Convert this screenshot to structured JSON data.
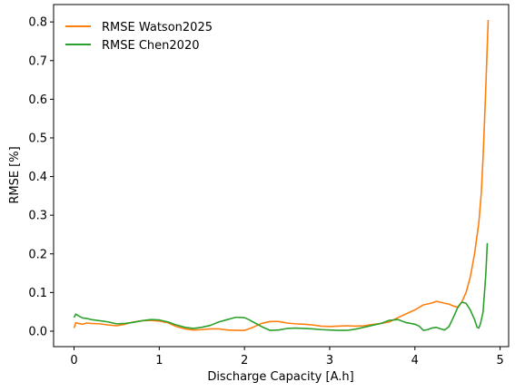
{
  "chart_data": {
    "type": "line",
    "xlabel": "Discharge Capacity [A.h]",
    "ylabel": "RMSE [%]",
    "xlim": [
      -0.24,
      5.1
    ],
    "ylim": [
      -0.04,
      0.845
    ],
    "xticks": [
      0,
      1,
      2,
      3,
      4,
      5
    ],
    "yticks": [
      0.0,
      0.1,
      0.2,
      0.3,
      0.4,
      0.5,
      0.6,
      0.7,
      0.8
    ],
    "xtick_labels": [
      "0",
      "1",
      "2",
      "3",
      "4",
      "5"
    ],
    "ytick_labels": [
      "0.0",
      "0.1",
      "0.2",
      "0.3",
      "0.4",
      "0.5",
      "0.6",
      "0.7",
      "0.8"
    ],
    "grid": false,
    "legend_position": "upper-left",
    "series": [
      {
        "name": "RMSE Watson2025",
        "color": "#ff7f0e",
        "x": [
          0.0,
          0.02,
          0.05,
          0.1,
          0.15,
          0.2,
          0.3,
          0.4,
          0.5,
          0.6,
          0.7,
          0.8,
          0.9,
          1.0,
          1.1,
          1.2,
          1.3,
          1.4,
          1.5,
          1.6,
          1.7,
          1.8,
          1.9,
          2.0,
          2.1,
          2.2,
          2.3,
          2.4,
          2.5,
          2.6,
          2.7,
          2.8,
          2.9,
          3.0,
          3.1,
          3.2,
          3.3,
          3.4,
          3.5,
          3.6,
          3.7,
          3.8,
          3.9,
          4.0,
          4.1,
          4.2,
          4.25,
          4.3,
          4.35,
          4.4,
          4.45,
          4.5,
          4.55,
          4.6,
          4.65,
          4.7,
          4.75,
          4.78,
          4.8,
          4.82,
          4.84,
          4.86
        ],
        "y": [
          0.008,
          0.022,
          0.02,
          0.018,
          0.021,
          0.02,
          0.019,
          0.016,
          0.014,
          0.018,
          0.024,
          0.027,
          0.028,
          0.026,
          0.022,
          0.012,
          0.006,
          0.003,
          0.004,
          0.006,
          0.006,
          0.003,
          0.002,
          0.002,
          0.01,
          0.02,
          0.025,
          0.025,
          0.021,
          0.019,
          0.018,
          0.016,
          0.013,
          0.012,
          0.013,
          0.014,
          0.013,
          0.014,
          0.017,
          0.02,
          0.024,
          0.035,
          0.045,
          0.055,
          0.068,
          0.073,
          0.077,
          0.075,
          0.072,
          0.07,
          0.065,
          0.062,
          0.075,
          0.1,
          0.14,
          0.2,
          0.28,
          0.36,
          0.45,
          0.56,
          0.68,
          0.805
        ]
      },
      {
        "name": "RMSE Chen2020",
        "color": "#2ca02c",
        "x": [
          0.0,
          0.02,
          0.05,
          0.1,
          0.15,
          0.2,
          0.3,
          0.4,
          0.5,
          0.6,
          0.7,
          0.8,
          0.9,
          1.0,
          1.1,
          1.2,
          1.3,
          1.4,
          1.5,
          1.6,
          1.7,
          1.8,
          1.9,
          2.0,
          2.05,
          2.1,
          2.2,
          2.3,
          2.4,
          2.5,
          2.6,
          2.7,
          2.8,
          2.9,
          3.0,
          3.1,
          3.2,
          3.3,
          3.4,
          3.5,
          3.6,
          3.7,
          3.8,
          3.9,
          4.0,
          4.05,
          4.1,
          4.15,
          4.2,
          4.25,
          4.3,
          4.35,
          4.4,
          4.45,
          4.5,
          4.55,
          4.6,
          4.65,
          4.7,
          4.73,
          4.75,
          4.77,
          4.8,
          4.83,
          4.85
        ],
        "y": [
          0.035,
          0.044,
          0.04,
          0.034,
          0.033,
          0.03,
          0.027,
          0.024,
          0.019,
          0.02,
          0.023,
          0.027,
          0.03,
          0.029,
          0.024,
          0.016,
          0.01,
          0.007,
          0.01,
          0.015,
          0.024,
          0.03,
          0.036,
          0.035,
          0.03,
          0.024,
          0.012,
          0.002,
          0.003,
          0.007,
          0.008,
          0.007,
          0.006,
          0.004,
          0.003,
          0.002,
          0.002,
          0.005,
          0.01,
          0.015,
          0.02,
          0.028,
          0.03,
          0.022,
          0.018,
          0.013,
          0.002,
          0.004,
          0.008,
          0.01,
          0.006,
          0.003,
          0.012,
          0.035,
          0.06,
          0.075,
          0.072,
          0.055,
          0.03,
          0.01,
          0.008,
          0.02,
          0.05,
          0.14,
          0.228
        ]
      }
    ]
  }
}
